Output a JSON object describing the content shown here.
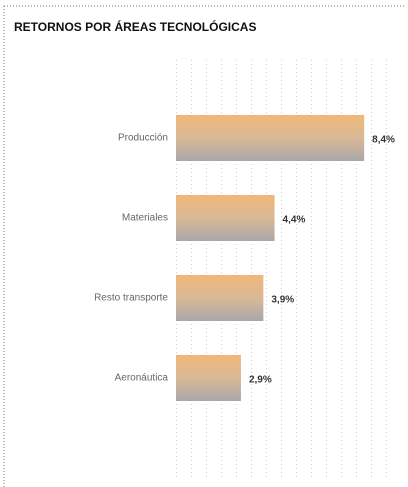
{
  "chart_data": {
    "type": "bar",
    "orientation": "horizontal",
    "title": "RETORNOS POR ÁREAS TECNOLÓGICAS",
    "categories": [
      "Producción",
      "Materiales",
      "Resto transporte",
      "Aeronáutica"
    ],
    "values": [
      8.4,
      4.4,
      3.9,
      2.9
    ],
    "value_labels": [
      "8,4%",
      "4,4%",
      "3,9%",
      "2,9%"
    ],
    "xlim": [
      0,
      10
    ]
  }
}
